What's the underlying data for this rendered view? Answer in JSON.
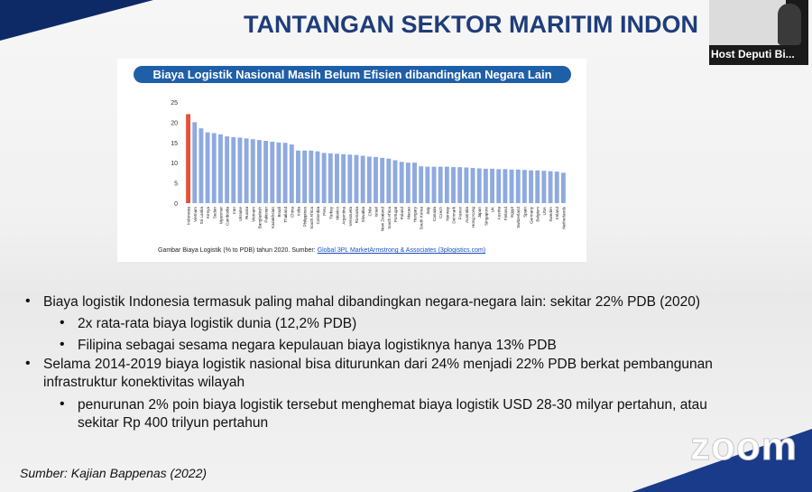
{
  "slide": {
    "title": "TANTANGAN SEKTOR MARITIM INDON",
    "participant_name": "Host Deputi Bi...",
    "chart_header": "Biaya Logistik Nasional Masih Belum Efisien dibandingkan Negara Lain",
    "caption_prefix": "Gambar  Biaya Logistik (% to PDB) tahun 2020. Sumber: ",
    "caption_source": "Global 3PL MarketArmstrong & Associates (3plogistics.com)",
    "bullets": [
      "Biaya logistik Indonesia termasuk paling mahal dibandingkan negara-negara lain: sekitar 22% PDB (2020)",
      "2x rata-rata biaya logistik dunia (12,2% PDB)",
      "Filipina sebagai sesama negara kepulauan biaya logistiknya hanya 13% PDB",
      "Selama 2014-2019 biaya logistik nasional bisa diturunkan dari 24% menjadi 22% PDB berkat pembangunan",
      "infrastruktur konektivitas wilayah",
      "penurunan 2% poin biaya logistik tersebut menghemat biaya logistik USD 28-30 milyar pertahun, atau",
      "sekitar Rp 400 trilyun pertahun"
    ],
    "source_note": "Sumber: Kajian Bappenas (2022)",
    "zoom_watermark": "zoom"
  },
  "colors": {
    "highlight_bar": "#e8503a",
    "bar": "#8eaadf",
    "header_bg": "#1f5fa8",
    "title": "#1f3d7a"
  },
  "chart_data": {
    "type": "bar",
    "title": "Biaya Logistik Nasional Masih Belum Efisien dibandingkan Negara Lain",
    "ylim": [
      0,
      25
    ],
    "yticks": [
      0,
      5,
      10,
      15,
      20,
      25
    ],
    "grid": false,
    "categories": [
      "Indonesia",
      "Vietnam",
      "Sri Lanka",
      "Kenya",
      "Sudan",
      "Myanmar",
      "Cambodia",
      "Iran",
      "Ukraine",
      "Russia",
      "Vietnam",
      "Bangladesh",
      "Pakistan",
      "Kazakhstan",
      "Brazil",
      "Thailand",
      "China",
      "India",
      "Philippines",
      "South Africa",
      "Colombia",
      "Peru",
      "Turkey",
      "Mexico",
      "Argentina",
      "Venezuela",
      "Romania",
      "Slovakia",
      "Chile",
      "Israel",
      "New Zealand",
      "South Africa",
      "Portugal",
      "Poland",
      "Macao",
      "Hungary",
      "South Korea",
      "Italy",
      "Canada",
      "Czech",
      "Norway",
      "Denmark",
      "France",
      "Australia",
      "Hong Kong",
      "Japan",
      "Singapore",
      "UK",
      "Austria",
      "Finland",
      "Egypt",
      "Switzerland",
      "Spain",
      "Germany",
      "Belgium",
      "USA",
      "Sweden",
      "Ireland",
      "Netherlands"
    ],
    "values": [
      22,
      20,
      18.5,
      17.5,
      17.3,
      17,
      16.5,
      16.3,
      16.2,
      16,
      15.8,
      15.6,
      15.4,
      15.2,
      15,
      14.9,
      14.5,
      13,
      13,
      13,
      12.8,
      12.4,
      12.3,
      12.2,
      12.1,
      12,
      11.9,
      11.7,
      11.5,
      11.4,
      11.2,
      11,
      10.6,
      10.2,
      10,
      10,
      9.1,
      9,
      9,
      9,
      9,
      8.9,
      8.9,
      8.8,
      8.7,
      8.6,
      8.5,
      8.5,
      8.4,
      8.4,
      8.3,
      8.3,
      8.2,
      8.1,
      8.1,
      8,
      7.9,
      7.8,
      7.5
    ]
  }
}
